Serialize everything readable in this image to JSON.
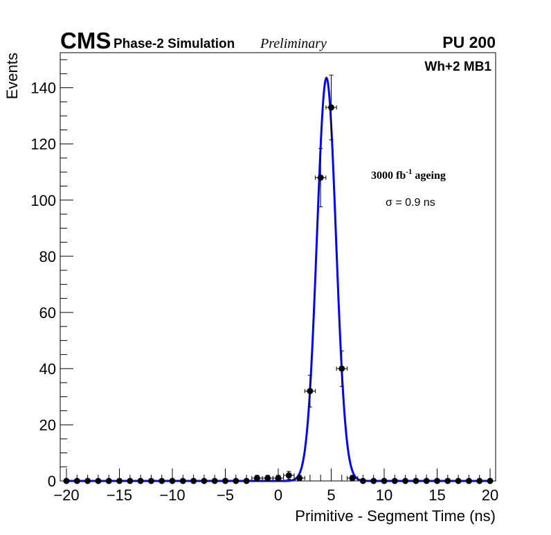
{
  "header": {
    "experiment": "CMS",
    "subtitle": "Phase-2 Simulation",
    "status": "Preliminary",
    "pileup": "PU 200"
  },
  "annotations": {
    "station": "Wh+2 MB1",
    "ageing_prefix": "3000 fb",
    "ageing_exponent": "-1",
    "ageing_suffix": " ageing",
    "sigma": "σ = 0.9 ns"
  },
  "chart_data": {
    "type": "scatter",
    "title": "",
    "xlabel": "Primitive - Segment Time (ns)",
    "ylabel": "Events",
    "xlim": [
      -20,
      20
    ],
    "ylim": [
      0,
      152.5
    ],
    "x_ticks": [
      -20,
      -15,
      -10,
      -5,
      0,
      5,
      10,
      15,
      20
    ],
    "x_tick_labels": [
      "−20",
      "−15",
      "−10",
      "−5",
      "0",
      "5",
      "10",
      "15",
      "20"
    ],
    "y_ticks": [
      0,
      20,
      40,
      60,
      80,
      100,
      120,
      140
    ],
    "y_tick_labels": [
      "0",
      "20",
      "40",
      "60",
      "80",
      "100",
      "120",
      "140"
    ],
    "bin_width": 1,
    "series": [
      {
        "name": "Simulation",
        "style": "points-with-errors",
        "color": "#000000",
        "x": [
          -20,
          -19,
          -18,
          -17,
          -16,
          -15,
          -14,
          -13,
          -12,
          -11,
          -10,
          -9,
          -8,
          -7,
          -6,
          -5,
          -4,
          -3,
          -2,
          -1,
          0,
          1,
          2,
          3,
          4,
          5,
          6,
          7,
          8,
          9,
          10,
          11,
          12,
          13,
          14,
          15,
          16,
          17,
          18,
          19,
          20
        ],
        "y": [
          0,
          0,
          0,
          0,
          0,
          0,
          0,
          0,
          0,
          0,
          0,
          0,
          0,
          0,
          0,
          0,
          0,
          0,
          1,
          1,
          1,
          2,
          1,
          32,
          108,
          133,
          40,
          1,
          0,
          0,
          0,
          0,
          0,
          0,
          0,
          0,
          0,
          0,
          0,
          0,
          0
        ]
      },
      {
        "name": "Gaussian fit",
        "style": "line",
        "color": "#0000ff",
        "fit": {
          "amplitude": 143.5,
          "mean": 4.55,
          "sigma": 0.9,
          "x_range": [
            -20,
            20
          ]
        }
      }
    ]
  }
}
